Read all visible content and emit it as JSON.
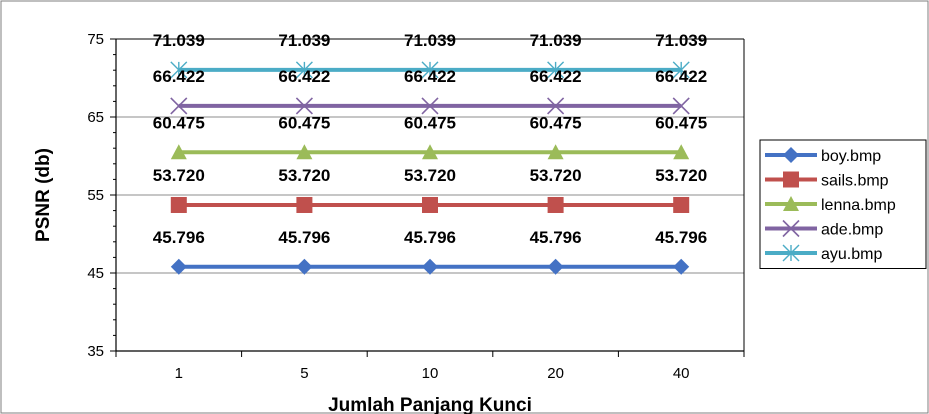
{
  "chart_data": {
    "type": "line",
    "xlabel": "Jumlah Panjang Kunci",
    "ylabel": "PSNR (db)",
    "categories": [
      "1",
      "5",
      "10",
      "20",
      "40"
    ],
    "ylim": [
      35,
      75
    ],
    "yticks": [
      35,
      45,
      55,
      65,
      75
    ],
    "grid": "horizontal major gridlines",
    "legend_position": "right",
    "series": [
      {
        "name": "boy.bmp",
        "values": [
          45.796,
          45.796,
          45.796,
          45.796,
          45.796
        ],
        "labels": [
          "45.796",
          "45.796",
          "45.796",
          "45.796",
          "45.796"
        ],
        "color": "#4472C4",
        "marker": "diamond"
      },
      {
        "name": "sails.bmp",
        "values": [
          53.72,
          53.72,
          53.72,
          53.72,
          53.72
        ],
        "labels": [
          "53.720",
          "53.720",
          "53.720",
          "53.720",
          "53.720"
        ],
        "color": "#C0504D",
        "marker": "square"
      },
      {
        "name": "lenna.bmp",
        "values": [
          60.475,
          60.475,
          60.475,
          60.475,
          60.475
        ],
        "labels": [
          "60.475",
          "60.475",
          "60.475",
          "60.475",
          "60.475"
        ],
        "color": "#9BBB59",
        "marker": "triangle"
      },
      {
        "name": "ade.bmp",
        "values": [
          66.422,
          66.422,
          66.422,
          66.422,
          66.422
        ],
        "labels": [
          "66.422",
          "66.422",
          "66.422",
          "66.422",
          "66.422"
        ],
        "color": "#8064A2",
        "marker": "x"
      },
      {
        "name": "ayu.bmp",
        "values": [
          71.039,
          71.039,
          71.039,
          71.039,
          71.039
        ],
        "labels": [
          "71.039",
          "71.039",
          "71.039",
          "71.039",
          "71.039"
        ],
        "color": "#4BACC6",
        "marker": "star"
      }
    ]
  }
}
